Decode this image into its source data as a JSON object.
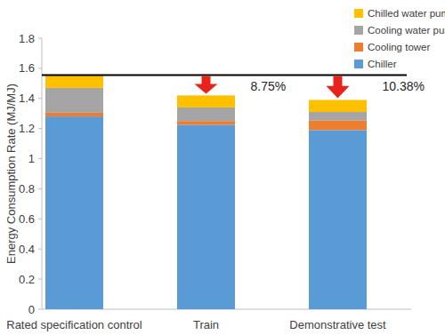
{
  "chart_data": {
    "type": "bar",
    "stacked": true,
    "grid": false,
    "legend": "top-right",
    "y_label": "Energy Consumption Rate (MJ/MJ)",
    "categories": [
      "Rated specification control",
      "Train",
      "Demonstrative test"
    ],
    "series": [
      {
        "name": "Chiller",
        "color": "#5b9bd5",
        "values": [
          1.28,
          1.225,
          1.19
        ]
      },
      {
        "name": "Cooling tower",
        "color": "#ed7d31",
        "values": [
          0.025,
          0.025,
          0.065
        ]
      },
      {
        "name": "Cooling water pump",
        "color": "#a5a5a5",
        "values": [
          0.165,
          0.09,
          0.055
        ]
      },
      {
        "name": "Chilled water pump",
        "color": "#ffc000",
        "values": [
          0.085,
          0.08,
          0.08
        ]
      }
    ],
    "ylim": [
      0,
      1.8
    ],
    "yticks": [
      0,
      0.2,
      0.4,
      0.6,
      0.8,
      1,
      1.2,
      1.4,
      1.6,
      1.8
    ],
    "reference_line": 1.555,
    "annotations": [
      {
        "label": "8.75%",
        "category": "Train"
      },
      {
        "label": "10.38%",
        "category": "Demonstrative test"
      }
    ]
  }
}
